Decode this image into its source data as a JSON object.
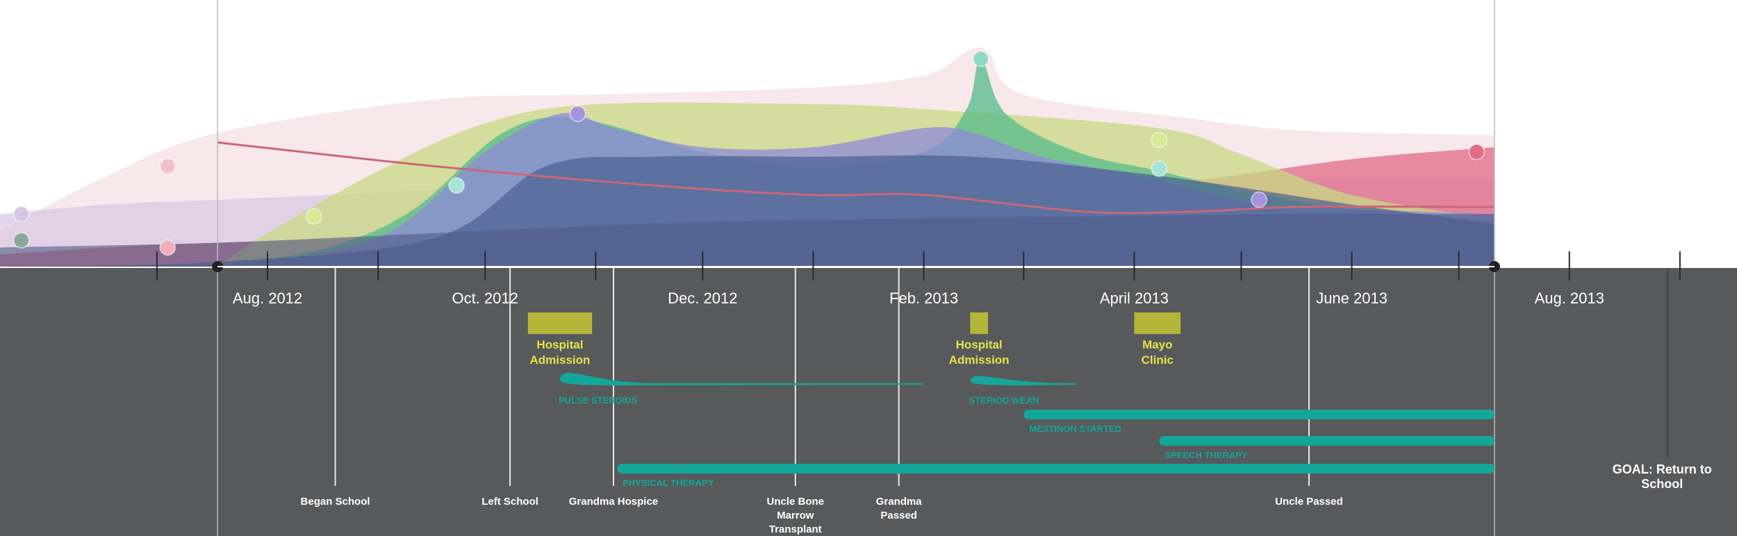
{
  "chart_data": {
    "type": "area",
    "x_axis": {
      "start": "2012-06-01",
      "end": "2013-10-01",
      "data_end": "2013-07-25",
      "ticks": [
        {
          "date": "2012-07-15",
          "label": ""
        },
        {
          "date": "2012-08-15",
          "label": "Aug. 2012"
        },
        {
          "date": "2012-09-15",
          "label": ""
        },
        {
          "date": "2012-10-15",
          "label": "Oct. 2012"
        },
        {
          "date": "2012-11-15",
          "label": ""
        },
        {
          "date": "2012-12-15",
          "label": "Dec. 2012"
        },
        {
          "date": "2013-01-15",
          "label": ""
        },
        {
          "date": "2013-02-15",
          "label": "Feb. 2013"
        },
        {
          "date": "2013-03-15",
          "label": ""
        },
        {
          "date": "2013-04-15",
          "label": "April 2013"
        },
        {
          "date": "2013-05-15",
          "label": ""
        },
        {
          "date": "2013-06-15",
          "label": "June 2013"
        },
        {
          "date": "2013-07-15",
          "label": ""
        },
        {
          "date": "2013-08-15",
          "label": "Aug. 2013"
        },
        {
          "date": "2013-09-15",
          "label": ""
        }
      ]
    },
    "y_axis": {
      "ylim": [
        0,
        100
      ],
      "labeled": false
    },
    "series": [
      {
        "color": "#f2d6dd",
        "opacity": 0.55,
        "points": [
          [
            "2012-06-01",
            15
          ],
          [
            "2012-07-01",
            38
          ],
          [
            "2012-08-01",
            56
          ],
          [
            "2012-10-01",
            70
          ],
          [
            "2012-11-15",
            72
          ],
          [
            "2013-01-15",
            75
          ],
          [
            "2013-02-15",
            80
          ],
          [
            "2013-02-27",
            90
          ],
          [
            "2013-03-05",
            90
          ],
          [
            "2013-03-15",
            72
          ],
          [
            "2013-05-01",
            62
          ],
          [
            "2013-06-01",
            57
          ],
          [
            "2013-07-25",
            55
          ]
        ]
      },
      {
        "color": "#d8c6e6",
        "opacity": 0.7,
        "points": [
          [
            "2012-06-01",
            22
          ],
          [
            "2012-07-01",
            26
          ],
          [
            "2012-08-01",
            28
          ],
          [
            "2012-09-01",
            30
          ],
          [
            "2012-10-01",
            32
          ],
          [
            "2012-12-01",
            34
          ],
          [
            "2013-03-01",
            36
          ],
          [
            "2013-06-01",
            37
          ],
          [
            "2013-07-25",
            37
          ]
        ]
      },
      {
        "color": "#e06c86",
        "opacity": 0.75,
        "points": [
          [
            "2012-06-01",
            5
          ],
          [
            "2012-07-01",
            8
          ],
          [
            "2012-08-01",
            10
          ],
          [
            "2012-11-01",
            14
          ],
          [
            "2013-01-01",
            20
          ],
          [
            "2013-03-01",
            28
          ],
          [
            "2013-05-01",
            36
          ],
          [
            "2013-06-15",
            45
          ],
          [
            "2013-07-25",
            50
          ]
        ]
      },
      {
        "color": "#c8da83",
        "opacity": 0.75,
        "points": [
          [
            "2012-08-01",
            0
          ],
          [
            "2012-08-15",
            14
          ],
          [
            "2012-09-15",
            40
          ],
          [
            "2012-10-15",
            60
          ],
          [
            "2012-11-15",
            68
          ],
          [
            "2013-01-15",
            68
          ],
          [
            "2013-02-15",
            66
          ],
          [
            "2013-04-22",
            58
          ],
          [
            "2013-05-15",
            47
          ],
          [
            "2013-06-15",
            30
          ],
          [
            "2013-07-25",
            20
          ]
        ]
      },
      {
        "color": "#5dbd8c",
        "opacity": 0.8,
        "points": [
          [
            "2012-08-01",
            0
          ],
          [
            "2012-09-01",
            8
          ],
          [
            "2012-09-25",
            24
          ],
          [
            "2012-10-20",
            56
          ],
          [
            "2012-11-10",
            62
          ],
          [
            "2012-12-15",
            48
          ],
          [
            "2013-01-15",
            42
          ],
          [
            "2013-02-15",
            48
          ],
          [
            "2013-02-27",
            66
          ],
          [
            "2013-03-03",
            87
          ],
          [
            "2013-03-10",
            64
          ],
          [
            "2013-03-30",
            48
          ],
          [
            "2013-04-22",
            40
          ],
          [
            "2013-05-15",
            32
          ],
          [
            "2013-06-15",
            24
          ],
          [
            "2013-07-25",
            20
          ]
        ]
      },
      {
        "color": "#8f89d8",
        "opacity": 0.75,
        "points": [
          [
            "2012-08-01",
            0
          ],
          [
            "2012-09-15",
            12
          ],
          [
            "2012-10-15",
            48
          ],
          [
            "2012-11-05",
            64
          ],
          [
            "2012-11-20",
            58
          ],
          [
            "2012-12-15",
            50
          ],
          [
            "2013-01-15",
            50
          ],
          [
            "2013-02-15",
            58
          ],
          [
            "2013-03-01",
            56
          ],
          [
            "2013-03-20",
            46
          ],
          [
            "2013-04-22",
            36
          ],
          [
            "2013-05-20",
            26
          ],
          [
            "2013-06-15",
            24
          ],
          [
            "2013-07-25",
            22
          ]
        ]
      },
      {
        "color": "#4a5f93",
        "opacity": 0.7,
        "points": [
          [
            "2012-06-01",
            0
          ],
          [
            "2012-08-01",
            2
          ],
          [
            "2012-10-01",
            12
          ],
          [
            "2012-11-01",
            42
          ],
          [
            "2012-12-01",
            46
          ],
          [
            "2013-01-15",
            46
          ],
          [
            "2013-03-01",
            46
          ],
          [
            "2013-04-22",
            38
          ],
          [
            "2013-06-15",
            26
          ],
          [
            "2013-07-25",
            18
          ]
        ]
      },
      {
        "color": "#4e5a86",
        "opacity": 0.6,
        "points": [
          [
            "2012-06-01",
            8
          ],
          [
            "2012-08-01",
            10
          ],
          [
            "2012-10-01",
            14
          ],
          [
            "2012-12-01",
            18
          ],
          [
            "2013-02-01",
            20
          ],
          [
            "2013-04-01",
            21
          ],
          [
            "2013-06-01",
            22
          ],
          [
            "2013-07-25",
            22
          ]
        ]
      }
    ],
    "trend_line": {
      "color": "#cc6677",
      "points": [
        [
          "2012-08-01",
          52
        ],
        [
          "2012-10-01",
          42
        ],
        [
          "2012-12-01",
          34
        ],
        [
          "2013-01-15",
          30
        ],
        [
          "2013-02-15",
          30
        ],
        [
          "2013-04-01",
          23
        ],
        [
          "2013-05-01",
          23
        ],
        [
          "2013-06-01",
          25
        ],
        [
          "2013-07-25",
          25
        ]
      ]
    },
    "markers": [
      {
        "date": "2012-06-07",
        "value": 22,
        "color": "#d8c6e6"
      },
      {
        "date": "2012-06-07",
        "value": 11,
        "color": "#8aa79a"
      },
      {
        "date": "2012-07-18",
        "value": 42,
        "color": "#f2c0cc"
      },
      {
        "date": "2012-07-18",
        "value": 8,
        "color": "#f2b0bc"
      },
      {
        "date": "2012-08-28",
        "value": 21,
        "color": "#d6ea94"
      },
      {
        "date": "2012-10-07",
        "value": 34,
        "color": "#a8e3d8"
      },
      {
        "date": "2012-11-10",
        "value": 64,
        "color": "#a790dc"
      },
      {
        "date": "2013-03-03",
        "value": 87,
        "color": "#8fd8c8"
      },
      {
        "date": "2013-04-22",
        "value": 53,
        "color": "#d6ea94"
      },
      {
        "date": "2013-04-22",
        "value": 41,
        "color": "#a8e3d8"
      },
      {
        "date": "2013-05-20",
        "value": 28,
        "color": "#a790dc"
      },
      {
        "date": "2013-07-20",
        "value": 48,
        "color": "#e06c86"
      }
    ],
    "range_bounds": [
      {
        "date": "2012-08-01",
        "style": "dot"
      },
      {
        "date": "2013-07-25",
        "style": "dot"
      }
    ]
  },
  "timeline": {
    "background": "#58595b",
    "events": [
      {
        "date": "2012-09-03",
        "label": "Began School",
        "row": 1
      },
      {
        "date": "2012-10-22",
        "label": "Left School",
        "row": 1
      },
      {
        "date": "2012-11-20",
        "label": "Grandma Hospice",
        "row": 1
      },
      {
        "date": "2013-01-10",
        "label": "Uncle Bone Marrow Transplant",
        "row": 2
      },
      {
        "date": "2013-02-08",
        "label": "Grandma Passed",
        "row": 2
      },
      {
        "date": "2013-06-03",
        "label": "Uncle Passed",
        "row": 1
      }
    ],
    "goal": {
      "date": "2013-09-10",
      "label": "GOAL: Return to School"
    },
    "admissions": [
      {
        "start": "2012-10-27",
        "end": "2012-11-14",
        "label": "Hospital Admission",
        "color": "#b5b53a",
        "label_color": "#e4e44a"
      },
      {
        "start": "2013-02-28",
        "end": "2013-03-05",
        "label": "Hospital Admission",
        "color": "#b5b53a",
        "label_color": "#e4e44a"
      },
      {
        "start": "2013-04-15",
        "end": "2013-04-28",
        "label": "Mayo Clinic",
        "color": "#b5b53a",
        "label_color": "#e4e44a"
      }
    ],
    "treatments": [
      {
        "start": "2012-11-05",
        "end": "2013-02-15",
        "label": "PULSE STEROIDS",
        "shape": "taper",
        "color": "#14a799"
      },
      {
        "start": "2013-02-28",
        "end": "2013-03-30",
        "label": "STERIOD WEAN",
        "shape": "taper",
        "color": "#14a799"
      },
      {
        "start": "2013-03-15",
        "end": "2013-07-25",
        "label": "MESTINON STARTED",
        "shape": "bar",
        "color": "#14a799"
      },
      {
        "start": "2013-04-22",
        "end": "2013-07-25",
        "label": "SPEECH THERAPY",
        "shape": "bar",
        "color": "#14a799"
      },
      {
        "start": "2012-11-21",
        "end": "2013-07-25",
        "label": "PHYSICAL THERAPY",
        "shape": "bar",
        "color": "#14a799"
      }
    ]
  }
}
